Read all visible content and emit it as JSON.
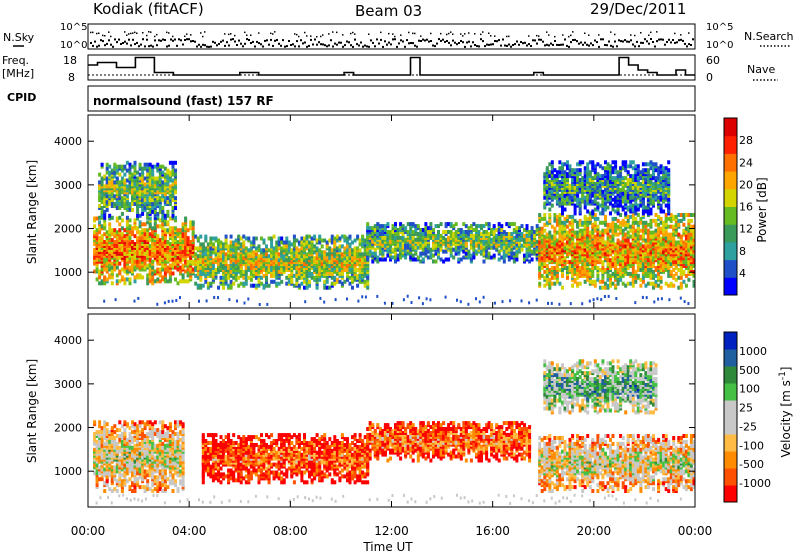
{
  "header": {
    "station": "Kodiak (fitACF)",
    "beam": "Beam 03",
    "date": "29/Dec/2011"
  },
  "top_panels": {
    "nsky": {
      "label": "N.Sky",
      "right_label": "N.Search",
      "ticks": [
        "10^5",
        "10^0"
      ],
      "right_ticks": [
        "10^5",
        "10^0"
      ]
    },
    "freq": {
      "label_line1": "Freq.",
      "label_line2": "[MHz]",
      "ticks": [
        "18",
        "8"
      ],
      "right_label": "Nave",
      "right_ticks": [
        "60",
        "0"
      ],
      "steps": [
        14,
        15,
        15,
        13,
        13,
        17,
        17,
        11,
        11,
        10,
        10,
        10,
        10,
        10,
        10,
        10,
        11,
        11,
        10,
        10,
        10,
        10,
        10,
        10,
        10,
        10,
        10,
        11,
        10,
        10,
        10,
        10,
        10,
        10,
        17,
        10,
        10,
        10,
        10,
        10,
        10,
        10,
        10,
        10,
        10,
        10,
        10,
        11,
        10,
        10,
        10,
        10,
        10,
        10,
        10,
        10,
        17,
        14,
        12,
        11,
        10,
        10,
        12,
        10
      ]
    },
    "cpid": {
      "label": "CPID",
      "text": "normalsound (fast) 157 RF"
    }
  },
  "chart_data": [
    {
      "type": "heatmap",
      "name": "power",
      "ylabel": "Slant Range [km]",
      "ylim": [
        180,
        4600
      ],
      "xlim": [
        0,
        24
      ],
      "yticks": [
        1000,
        2000,
        3000,
        4000
      ],
      "colorbar_label": "Power [dB]",
      "colorbar_ticks": [
        "28",
        "24",
        "20",
        "16",
        "12",
        "8",
        "4"
      ],
      "colorbar_colors": [
        "#0000ff",
        "#2050c8",
        "#2ea0a0",
        "#3a9a5a",
        "#66bb22",
        "#d4d400",
        "#ffa500",
        "#ff7000",
        "#ff2000",
        "#dd0000"
      ],
      "echo_regions": [
        {
          "t0": 0.2,
          "t1": 4.2,
          "r0": 700,
          "r1": 2200,
          "level": 0.75
        },
        {
          "t0": 0.4,
          "t1": 3.5,
          "r0": 2200,
          "r1": 3500,
          "level": 0.45
        },
        {
          "t0": 4.2,
          "t1": 11.0,
          "r0": 600,
          "r1": 1800,
          "level": 0.55
        },
        {
          "t0": 11.0,
          "t1": 17.8,
          "r0": 1200,
          "r1": 2100,
          "level": 0.45
        },
        {
          "t0": 17.8,
          "t1": 24.0,
          "r0": 600,
          "r1": 2300,
          "level": 0.7
        },
        {
          "t0": 18.0,
          "t1": 23.0,
          "r0": 2300,
          "r1": 3500,
          "level": 0.35
        }
      ]
    },
    {
      "type": "heatmap",
      "name": "velocity",
      "ylabel": "Slant Range [km]",
      "xlabel": "Time UT",
      "ylim": [
        180,
        4600
      ],
      "xlim": [
        0,
        24
      ],
      "yticks": [
        1000,
        2000,
        3000,
        4000
      ],
      "xticks": [
        "00:00",
        "04:00",
        "08:00",
        "12:00",
        "16:00",
        "20:00",
        "00:00"
      ],
      "colorbar_label": "Velocity [m s^-1]",
      "colorbar_ticks": [
        "1000",
        "500",
        "100",
        "25",
        "-25",
        "-100",
        "-500",
        "-1000"
      ],
      "colorbar_colors": [
        "#ff0000",
        "#ff5000",
        "#ff8c00",
        "#ffbb44",
        "#c8c8c8",
        "#c8c8c8",
        "#44c044",
        "#2e8a3a",
        "#2060a0",
        "#0020c0"
      ],
      "echo_regions": [
        {
          "t0": 0.2,
          "t1": 3.8,
          "r0": 500,
          "r1": 2100,
          "level": 0.5
        },
        {
          "t0": 4.5,
          "t1": 11.0,
          "r0": 700,
          "r1": 1800,
          "level": 0.2
        },
        {
          "t0": 11.0,
          "t1": 17.5,
          "r0": 1200,
          "r1": 2100,
          "level": 0.25
        },
        {
          "t0": 17.8,
          "t1": 24.0,
          "r0": 500,
          "r1": 1800,
          "level": 0.5
        },
        {
          "t0": 18.0,
          "t1": 22.5,
          "r0": 2300,
          "r1": 3500,
          "level": 0.7
        }
      ]
    }
  ]
}
